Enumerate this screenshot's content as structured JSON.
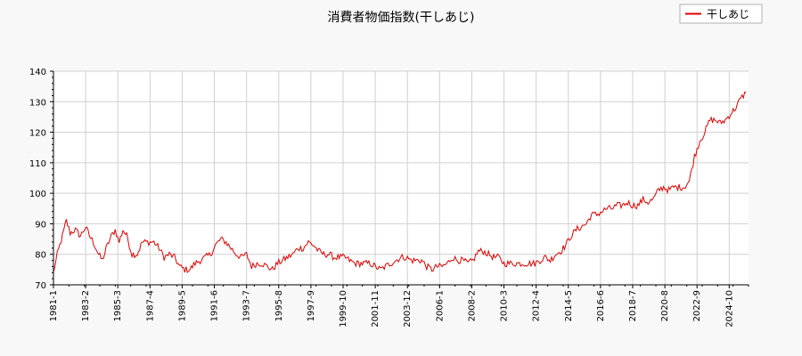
{
  "chart_data": {
    "type": "line",
    "title": "消費者物価指数(干しあじ)",
    "xlabel": "",
    "ylabel": "",
    "ylim": [
      70,
      140
    ],
    "yticks": [
      70,
      80,
      90,
      100,
      110,
      120,
      130,
      140
    ],
    "xlim": [
      "1981-01",
      "2026-01"
    ],
    "xticks": [
      "1981-1",
      "1983-2",
      "1985-3",
      "1987-4",
      "1989-5",
      "1991-6",
      "1993-7",
      "1995-8",
      "1997-9",
      "1999-10",
      "2001-11",
      "2003-12",
      "2006-1",
      "2008-2",
      "2010-3",
      "2012-4",
      "2014-5",
      "2016-6",
      "2018-7",
      "2020-8",
      "2022-9",
      "2024-10"
    ],
    "grid": true,
    "legend": "top-right",
    "series": [
      {
        "name": "干しあじ",
        "color": "#e00000",
        "points": [
          [
            "1981-01",
            74
          ],
          [
            "1981-04",
            80
          ],
          [
            "1981-08",
            86
          ],
          [
            "1981-11",
            91
          ],
          [
            "1982-02",
            87
          ],
          [
            "1982-06",
            88
          ],
          [
            "1982-10",
            86
          ],
          [
            "1983-02",
            89
          ],
          [
            "1983-05",
            86
          ],
          [
            "1983-08",
            84
          ],
          [
            "1983-12",
            80
          ],
          [
            "1984-03",
            78
          ],
          [
            "1984-06",
            82
          ],
          [
            "1984-10",
            86
          ],
          [
            "1985-01",
            88
          ],
          [
            "1985-04",
            84
          ],
          [
            "1985-07",
            88
          ],
          [
            "1985-10",
            86
          ],
          [
            "1986-02",
            80
          ],
          [
            "1986-06",
            80
          ],
          [
            "1986-10",
            84
          ],
          [
            "1987-03",
            84
          ],
          [
            "1987-07",
            84
          ],
          [
            "1987-11",
            82
          ],
          [
            "1988-03",
            79
          ],
          [
            "1988-07",
            80
          ],
          [
            "1988-11",
            79
          ],
          [
            "1989-03",
            76
          ],
          [
            "1989-07",
            75
          ],
          [
            "1989-11",
            75
          ],
          [
            "1990-03",
            77
          ],
          [
            "1990-07",
            78
          ],
          [
            "1990-11",
            79
          ],
          [
            "1991-03",
            80
          ],
          [
            "1991-07",
            83
          ],
          [
            "1991-11",
            85
          ],
          [
            "1992-03",
            84
          ],
          [
            "1992-07",
            82
          ],
          [
            "1992-11",
            80
          ],
          [
            "1993-03",
            79
          ],
          [
            "1993-07",
            80
          ],
          [
            "1993-11",
            76
          ],
          [
            "1994-03",
            77
          ],
          [
            "1994-07",
            77
          ],
          [
            "1994-11",
            76
          ],
          [
            "1995-03",
            75
          ],
          [
            "1995-07",
            77
          ],
          [
            "1995-11",
            78
          ],
          [
            "1996-03",
            79
          ],
          [
            "1996-07",
            80
          ],
          [
            "1996-11",
            82
          ],
          [
            "1997-03",
            82
          ],
          [
            "1997-07",
            84
          ],
          [
            "1997-11",
            83
          ],
          [
            "1998-03",
            81
          ],
          [
            "1998-07",
            80
          ],
          [
            "1998-11",
            80
          ],
          [
            "1999-03",
            79
          ],
          [
            "1999-07",
            79
          ],
          [
            "1999-11",
            79
          ],
          [
            "2000-03",
            78
          ],
          [
            "2000-07",
            77
          ],
          [
            "2000-11",
            77
          ],
          [
            "2001-03",
            77
          ],
          [
            "2001-07",
            77
          ],
          [
            "2001-11",
            76
          ],
          [
            "2002-03",
            75
          ],
          [
            "2002-07",
            76
          ],
          [
            "2002-11",
            77
          ],
          [
            "2003-03",
            78
          ],
          [
            "2003-07",
            79
          ],
          [
            "2003-11",
            79
          ],
          [
            "2004-03",
            78
          ],
          [
            "2004-07",
            78
          ],
          [
            "2004-11",
            78
          ],
          [
            "2005-03",
            76
          ],
          [
            "2005-07",
            75
          ],
          [
            "2005-11",
            76
          ],
          [
            "2006-03",
            76
          ],
          [
            "2006-07",
            77
          ],
          [
            "2006-11",
            79
          ],
          [
            "2007-03",
            78
          ],
          [
            "2007-07",
            78
          ],
          [
            "2007-11",
            77
          ],
          [
            "2008-03",
            78
          ],
          [
            "2008-07",
            81
          ],
          [
            "2008-11",
            81
          ],
          [
            "2009-03",
            80
          ],
          [
            "2009-07",
            79
          ],
          [
            "2009-11",
            79
          ],
          [
            "2010-03",
            77
          ],
          [
            "2010-07",
            77
          ],
          [
            "2010-11",
            77
          ],
          [
            "2011-03",
            77
          ],
          [
            "2011-07",
            77
          ],
          [
            "2011-11",
            77
          ],
          [
            "2012-03",
            77
          ],
          [
            "2012-07",
            78
          ],
          [
            "2012-11",
            79
          ],
          [
            "2013-03",
            78
          ],
          [
            "2013-07",
            80
          ],
          [
            "2013-11",
            81
          ],
          [
            "2014-03",
            83
          ],
          [
            "2014-07",
            86
          ],
          [
            "2014-11",
            88
          ],
          [
            "2015-03",
            89
          ],
          [
            "2015-07",
            90
          ],
          [
            "2015-11",
            93
          ],
          [
            "2016-03",
            93
          ],
          [
            "2016-07",
            94
          ],
          [
            "2016-11",
            95
          ],
          [
            "2017-03",
            95
          ],
          [
            "2017-07",
            96
          ],
          [
            "2017-11",
            96
          ],
          [
            "2018-03",
            97
          ],
          [
            "2018-07",
            96
          ],
          [
            "2018-11",
            96
          ],
          [
            "2019-03",
            98
          ],
          [
            "2019-07",
            97
          ],
          [
            "2019-11",
            98
          ],
          [
            "2020-03",
            101
          ],
          [
            "2020-07",
            102
          ],
          [
            "2020-11",
            101
          ],
          [
            "2021-03",
            102
          ],
          [
            "2021-07",
            102
          ],
          [
            "2021-11",
            102
          ],
          [
            "2022-03",
            104
          ],
          [
            "2022-07",
            112
          ],
          [
            "2022-11",
            117
          ],
          [
            "2023-03",
            120
          ],
          [
            "2023-07",
            124
          ],
          [
            "2023-11",
            124
          ],
          [
            "2024-03",
            123
          ],
          [
            "2024-07",
            124
          ],
          [
            "2024-11",
            126
          ],
          [
            "2025-03",
            128
          ],
          [
            "2025-07",
            131
          ],
          [
            "2025-11",
            133
          ]
        ]
      }
    ]
  }
}
